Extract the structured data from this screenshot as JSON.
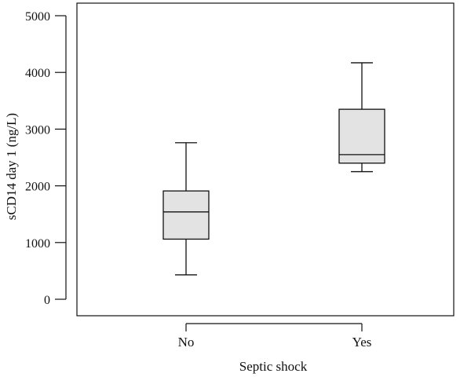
{
  "chart_data": {
    "type": "box",
    "title": "",
    "xlabel": "Septic shock",
    "ylabel": "sCD14 day 1 (ng/L)",
    "ylim": [
      0,
      5000
    ],
    "yticks": [
      0,
      1000,
      2000,
      3000,
      4000,
      5000
    ],
    "categories": [
      "No",
      "Yes"
    ],
    "boxes": [
      {
        "category": "No",
        "whisker_low": 430,
        "q1": 1060,
        "median": 1540,
        "q3": 1910,
        "whisker_high": 2760
      },
      {
        "category": "Yes",
        "whisker_low": 2250,
        "q1": 2400,
        "median": 2550,
        "q3": 3350,
        "whisker_high": 4170
      }
    ],
    "box_fill": "#e3e3e3",
    "line_color": "#111111",
    "grid": false,
    "legend": "none"
  }
}
